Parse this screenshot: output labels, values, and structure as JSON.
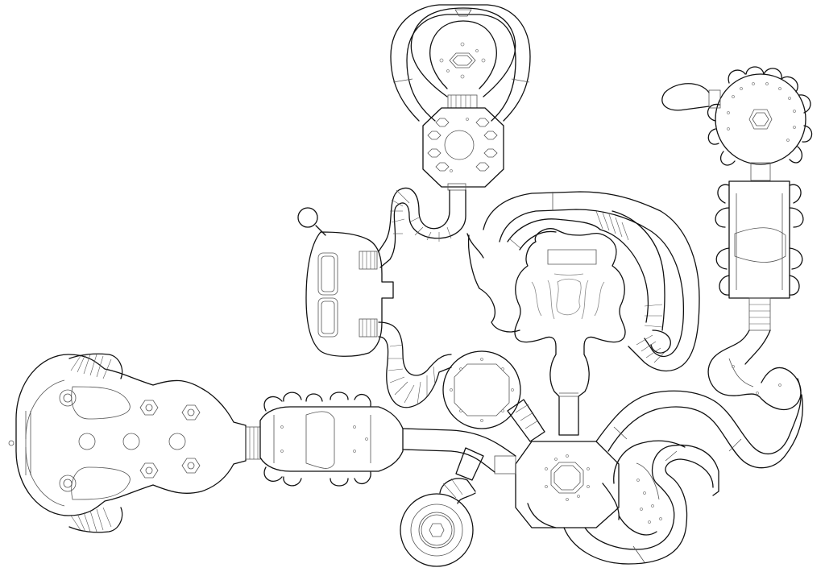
{
  "map": {
    "background": "#ffffff",
    "wall_color": "#111111",
    "detail_color": "#8a8a8a",
    "labels": []
  }
}
